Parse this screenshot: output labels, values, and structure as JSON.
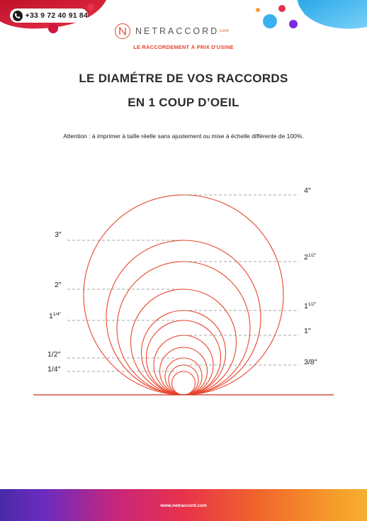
{
  "header": {
    "phone": "+33 9 72 40 91 84",
    "brand": "NETRACCORD",
    "brand_suffix": ".com",
    "tagline": "LE RACCORDEMENT À PRIX D'USINE"
  },
  "title": {
    "line1": "LE DIAMÉTRE DE VOS RACCORDS",
    "line2": "EN 1 COUP D’OEIL"
  },
  "notice": "Attention : à imprimer à taille réelle sans ajustement ou mise à échelle différente de 100%.",
  "diagram": {
    "circle_color": "#e8452c",
    "baseline_color": "#c8321e",
    "leader_color": "#8a8a8a",
    "left_labels": [
      {
        "main": "3″",
        "sup": ""
      },
      {
        "main": "2″",
        "sup": ""
      },
      {
        "main": "1",
        "sup": "1/4″"
      },
      {
        "main": "1/2″",
        "sup": ""
      },
      {
        "main": "1/4″",
        "sup": ""
      }
    ],
    "right_labels": [
      {
        "main": "4″",
        "sup": ""
      },
      {
        "main": "2",
        "sup": "1/2″"
      },
      {
        "main": "1",
        "sup": "1/2″"
      },
      {
        "main": "1″",
        "sup": ""
      },
      {
        "main": "3/8″",
        "sup": ""
      }
    ]
  },
  "footer": {
    "url": "www.netraccord.com"
  },
  "colors": {
    "accent": "#e8452c",
    "title": "#2c2c2c"
  }
}
